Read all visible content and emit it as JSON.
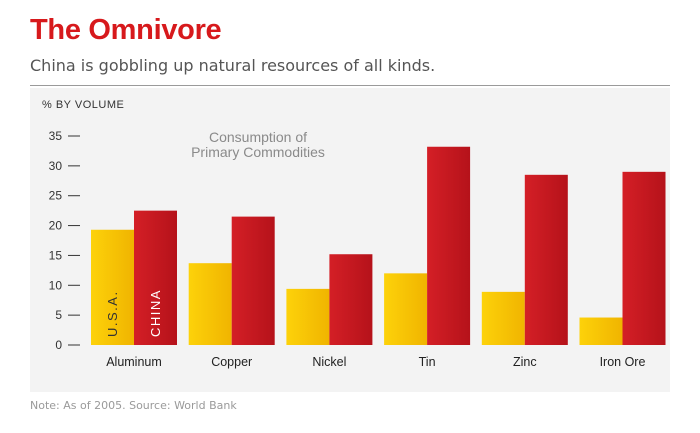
{
  "title": "The Omnivore",
  "subtitle": "China is gobbling up natural resources of all kinds.",
  "note": "Note: As of 2005. Source: World Bank",
  "colors": {
    "usa": "#f7c200",
    "china": "#c8191e",
    "title": "#d7191c",
    "panel": "#f3f3f3"
  },
  "chart_data": {
    "type": "bar",
    "title": "Consumption of Primary Commodities",
    "ylabel": "% BY VOLUME",
    "categories": [
      "Aluminum",
      "Copper",
      "Nickel",
      "Tin",
      "Zinc",
      "Iron Ore"
    ],
    "series": [
      {
        "name": "U.S.A.",
        "values": [
          19.3,
          13.7,
          9.4,
          12.0,
          8.9,
          4.6
        ]
      },
      {
        "name": "CHINA",
        "values": [
          22.5,
          21.5,
          15.2,
          33.2,
          28.5,
          29.0
        ]
      }
    ],
    "yticks": [
      0,
      5,
      10,
      15,
      20,
      25,
      30,
      35
    ],
    "ylim": [
      0,
      35
    ],
    "grid": false,
    "legend": "inside-bars"
  }
}
